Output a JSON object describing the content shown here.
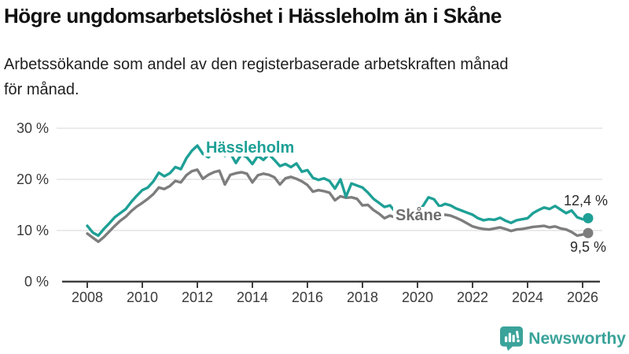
{
  "header": {
    "title": "Högre ungdomsarbetslöshet i Hässleholm än i Skåne",
    "subtitle_line1": "Arbetssökande som andel av den registerbaserade arbetskraften månad",
    "subtitle_line2": "för månad."
  },
  "footer": {
    "brand": "Newsworthy"
  },
  "colors": {
    "hassleholm": "#1ea096",
    "skane": "#7d7d7d",
    "grid": "#dedede",
    "axis": "#3f3f3f",
    "tick_text": "#3a3a3a",
    "value_text": "#2a2a2a",
    "brand": "#3aa39a"
  },
  "chart_data": {
    "type": "line",
    "title": "Högre ungdomsarbetslöshet i Hässleholm än i Skåne",
    "xlabel": "",
    "ylabel": "Arbetssökande som andel av den registerbaserade arbetskraften",
    "unit": "%",
    "grid": true,
    "legend_position": "inline-labels",
    "ylim": [
      0,
      30
    ],
    "y_ticks": [
      {
        "value": 30,
        "label": "30 %"
      },
      {
        "value": 20,
        "label": "20 %"
      },
      {
        "value": 10,
        "label": "10 %"
      },
      {
        "value": 0,
        "label": "0 %"
      }
    ],
    "x_ticks": [
      2008,
      2010,
      2012,
      2014,
      2016,
      2018,
      2020,
      2022,
      2024,
      2026
    ],
    "x": [
      2008,
      2008.2,
      2008.4,
      2008.6,
      2008.8,
      2009,
      2009.2,
      2009.4,
      2009.6,
      2009.8,
      2010,
      2010.2,
      2010.4,
      2010.6,
      2010.8,
      2011,
      2011.2,
      2011.4,
      2011.6,
      2011.8,
      2012,
      2012.2,
      2012.4,
      2012.6,
      2012.8,
      2013,
      2013.2,
      2013.4,
      2013.6,
      2013.8,
      2014,
      2014.2,
      2014.4,
      2014.6,
      2014.8,
      2015,
      2015.2,
      2015.4,
      2015.6,
      2015.8,
      2016,
      2016.2,
      2016.4,
      2016.6,
      2016.8,
      2017,
      2017.2,
      2017.4,
      2017.6,
      2017.8,
      2018,
      2018.2,
      2018.4,
      2018.6,
      2018.8,
      2019,
      2019.2,
      2019.4,
      2019.6,
      2019.8,
      2020,
      2020.2,
      2020.4,
      2020.6,
      2020.8,
      2021,
      2021.2,
      2021.4,
      2021.6,
      2021.8,
      2022,
      2022.2,
      2022.4,
      2022.6,
      2022.8,
      2023,
      2023.2,
      2023.4,
      2023.6,
      2023.8,
      2024,
      2024.2,
      2024.4,
      2024.6,
      2024.8,
      2025,
      2025.2,
      2025.4,
      2025.6,
      2025.8,
      2026,
      2026.2
    ],
    "series": [
      {
        "name": "Hässleholm",
        "label": "Hässleholm",
        "color": "#1ea096",
        "end_label": "12,4 %",
        "end_value": 12.4,
        "values": [
          10.9,
          9.6,
          9.0,
          10.3,
          11.4,
          12.6,
          13.4,
          14.2,
          15.6,
          16.8,
          17.9,
          18.4,
          19.6,
          21.3,
          20.6,
          21.2,
          22.4,
          22.0,
          24.1,
          25.6,
          26.6,
          25.0,
          24.3,
          25.5,
          25.9,
          24.6,
          25.1,
          23.2,
          24.9,
          24.3,
          23.0,
          24.6,
          23.8,
          24.9,
          23.8,
          22.6,
          23.0,
          22.4,
          23.1,
          21.5,
          21.8,
          20.3,
          19.9,
          20.2,
          19.7,
          18.2,
          20.0,
          16.6,
          19.2,
          18.8,
          18.4,
          17.4,
          16.2,
          15.4,
          14.6,
          14.9,
          13.6,
          13.1,
          12.8,
          13.2,
          13.3,
          14.8,
          16.5,
          16.1,
          14.7,
          15.2,
          14.9,
          14.3,
          13.9,
          13.5,
          13.1,
          12.4,
          12.0,
          12.2,
          12.1,
          12.5,
          11.9,
          11.5,
          12.0,
          12.2,
          12.4,
          13.4,
          14.0,
          14.5,
          14.2,
          14.8,
          14.1,
          13.4,
          13.9,
          12.6,
          12.2,
          12.4
        ]
      },
      {
        "name": "Skåne",
        "label": "Skåne",
        "color": "#7d7d7d",
        "end_label": "9,5 %",
        "end_value": 9.5,
        "values": [
          9.4,
          8.6,
          7.8,
          8.7,
          9.8,
          10.9,
          11.9,
          12.7,
          13.8,
          14.7,
          15.4,
          16.2,
          17.1,
          18.4,
          18.1,
          18.7,
          19.7,
          19.4,
          20.8,
          21.6,
          21.9,
          20.1,
          20.9,
          21.4,
          21.7,
          19.0,
          20.9,
          21.2,
          21.4,
          21.1,
          19.4,
          20.8,
          21.1,
          20.9,
          20.4,
          19.0,
          20.2,
          20.5,
          20.1,
          19.6,
          18.9,
          17.6,
          17.9,
          17.7,
          17.4,
          15.9,
          16.7,
          16.4,
          16.5,
          16.2,
          14.9,
          15.0,
          14.0,
          13.3,
          12.4,
          12.9,
          12.5,
          12.2,
          12.0,
          11.8,
          11.9,
          13.1,
          14.1,
          13.7,
          12.9,
          13.1,
          12.9,
          12.5,
          12.0,
          11.4,
          10.8,
          10.5,
          10.3,
          10.2,
          10.4,
          10.6,
          10.3,
          9.9,
          10.2,
          10.3,
          10.5,
          10.7,
          10.8,
          10.9,
          10.6,
          10.8,
          10.4,
          10.2,
          9.7,
          9.0,
          9.2,
          9.5
        ]
      }
    ]
  }
}
